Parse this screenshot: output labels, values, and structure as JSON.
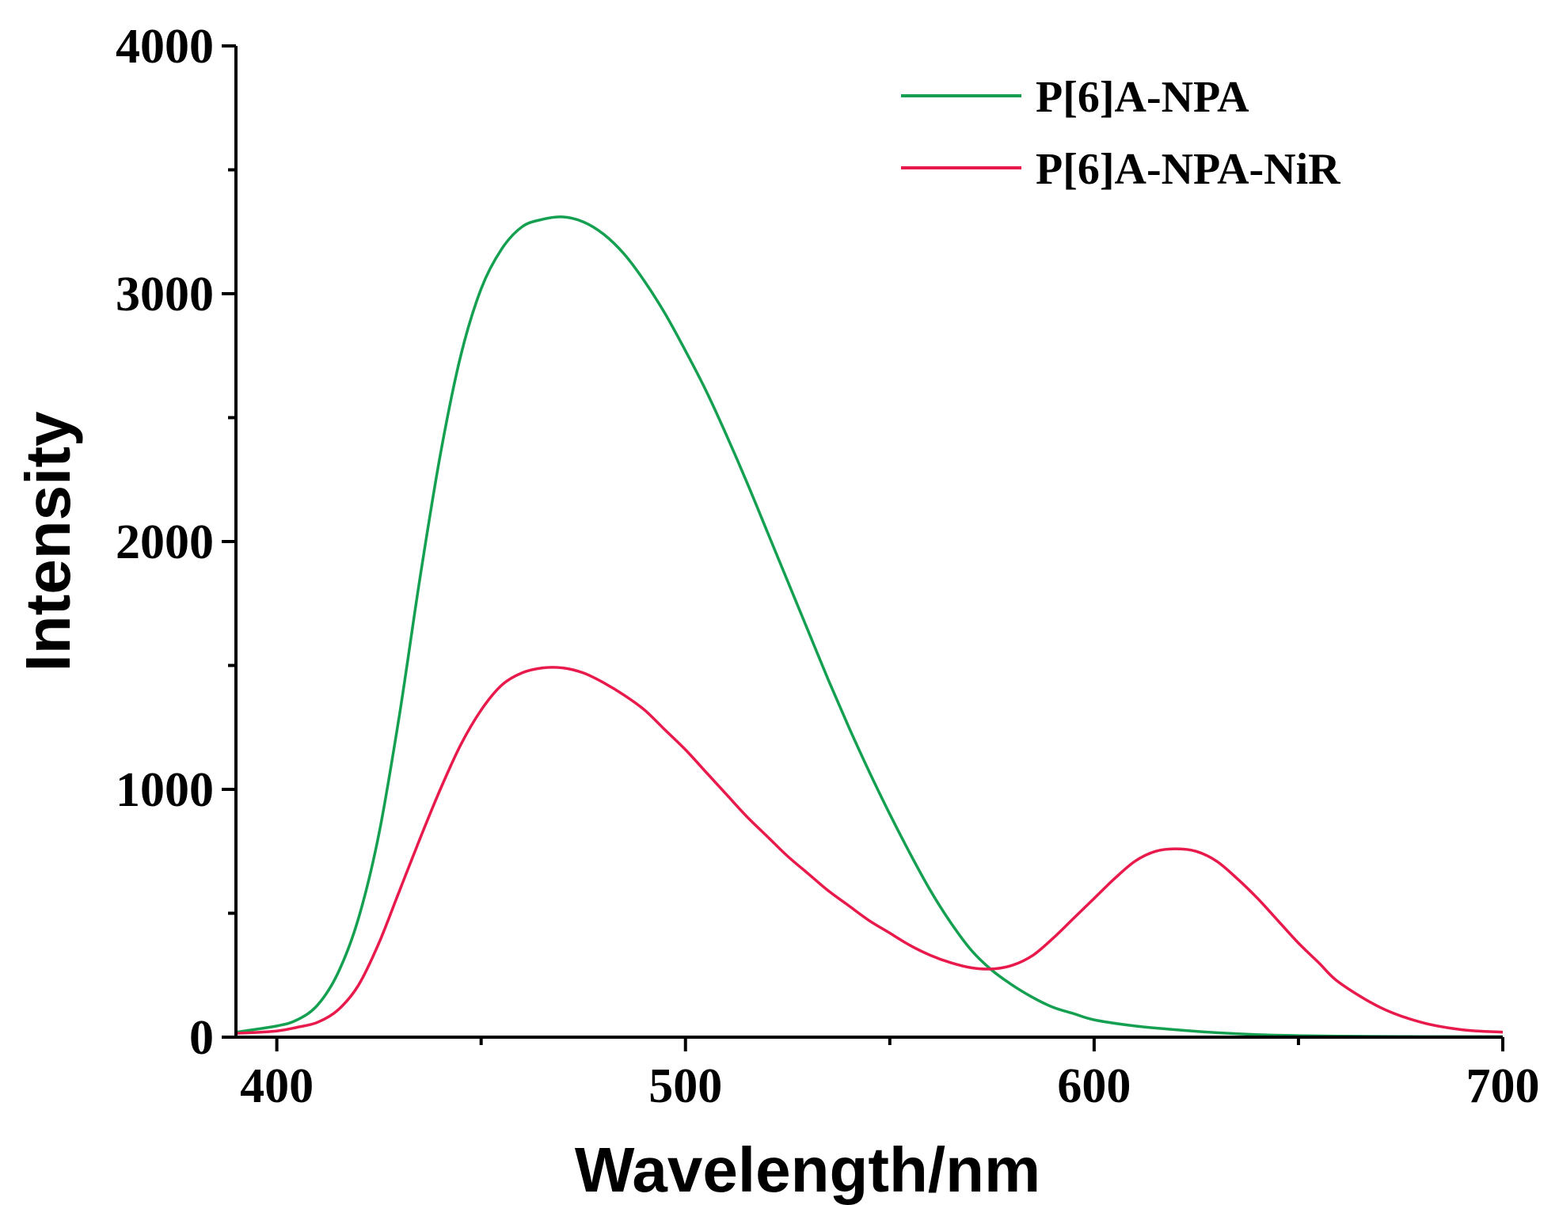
{
  "chart_data": {
    "type": "line",
    "title": "",
    "xlabel": "Wavelength/nm",
    "ylabel": "Intensity",
    "xlim": [
      390,
      700
    ],
    "ylim": [
      0,
      4000
    ],
    "x_ticks": [
      400,
      500,
      600,
      700
    ],
    "y_ticks": [
      0,
      1000,
      2000,
      3000,
      4000
    ],
    "x_tick_labels": [
      "400",
      "500",
      "600",
      "700"
    ],
    "y_tick_labels": [
      "0",
      "1000",
      "2000",
      "3000",
      "4000"
    ],
    "legend_position": "top-right",
    "series": [
      {
        "name": "P[6]A-NPA",
        "color": "#14a050",
        "x": [
          390,
          400,
          405,
          410,
          415,
          420,
          425,
          430,
          435,
          440,
          445,
          450,
          455,
          460,
          465,
          470,
          475,
          480,
          485,
          490,
          495,
          500,
          505,
          510,
          515,
          520,
          525,
          530,
          535,
          540,
          545,
          550,
          555,
          560,
          565,
          570,
          575,
          580,
          585,
          590,
          595,
          600,
          610,
          620,
          630,
          640,
          650,
          660,
          670,
          680,
          690,
          700
        ],
        "y": [
          20,
          45,
          70,
          130,
          260,
          480,
          820,
          1300,
          1850,
          2350,
          2750,
          3020,
          3180,
          3270,
          3300,
          3310,
          3290,
          3240,
          3160,
          3050,
          2920,
          2770,
          2610,
          2430,
          2240,
          2040,
          1840,
          1640,
          1440,
          1250,
          1070,
          900,
          740,
          590,
          460,
          350,
          270,
          210,
          160,
          120,
          95,
          70,
          45,
          30,
          18,
          10,
          6,
          4,
          3,
          2,
          2,
          2
        ]
      },
      {
        "name": "P[6]A-NPA-NiR",
        "color": "#e8194b",
        "x": [
          390,
          400,
          405,
          410,
          415,
          420,
          425,
          430,
          435,
          440,
          445,
          450,
          455,
          460,
          465,
          470,
          475,
          480,
          485,
          490,
          495,
          500,
          505,
          510,
          515,
          520,
          525,
          530,
          535,
          540,
          545,
          550,
          555,
          560,
          565,
          570,
          575,
          580,
          585,
          590,
          595,
          600,
          605,
          610,
          615,
          620,
          625,
          630,
          635,
          640,
          645,
          650,
          655,
          660,
          670,
          680,
          690,
          700
        ],
        "y": [
          15,
          25,
          40,
          60,
          110,
          210,
          380,
          590,
          800,
          1000,
          1180,
          1320,
          1420,
          1470,
          1490,
          1490,
          1470,
          1430,
          1380,
          1320,
          1240,
          1160,
          1070,
          980,
          890,
          810,
          730,
          660,
          590,
          530,
          470,
          420,
          370,
          330,
          300,
          280,
          275,
          290,
          330,
          400,
          480,
          560,
          640,
          710,
          750,
          760,
          750,
          710,
          640,
          560,
          470,
          380,
          300,
          220,
          120,
          60,
          30,
          20
        ]
      }
    ]
  }
}
